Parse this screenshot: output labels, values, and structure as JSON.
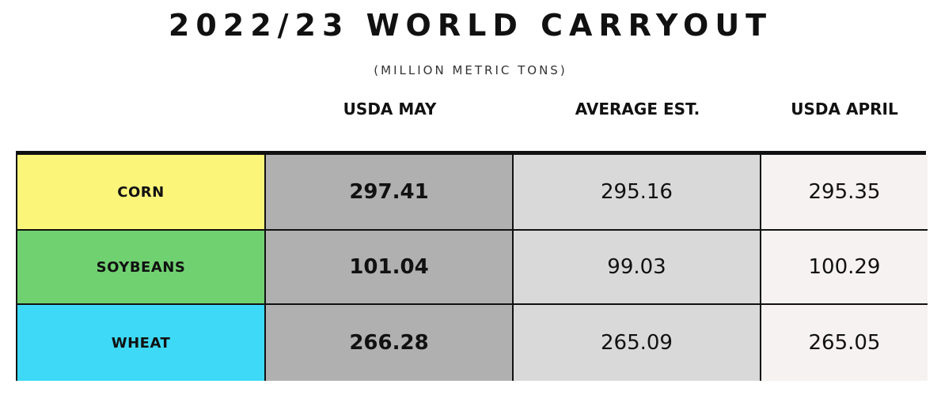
{
  "title": "2022/23 WORLD CARRYOUT",
  "subtitle": "(MILLION METRIC TONS)",
  "columns": [
    "USDA MAY",
    "AVERAGE EST.",
    "USDA APRIL"
  ],
  "rows": [
    {
      "label": "CORN",
      "usda_may": "297.41",
      "average_est": "295.16",
      "usda_april": "295.35"
    },
    {
      "label": "SOYBEANS",
      "usda_may": "101.04",
      "average_est": "99.03",
      "usda_april": "100.29"
    },
    {
      "label": "WHEAT",
      "usda_may": "266.28",
      "average_est": "265.09",
      "usda_april": "265.05"
    }
  ],
  "colors": {
    "corn": "#fbf67a",
    "soybeans": "#70d171",
    "wheat": "#3dd9f7",
    "usda_may_col": "#b0b0b0",
    "average_est_col": "#d9d9d9",
    "usda_april_col": "#f5f2f1"
  },
  "chart_data": {
    "type": "table",
    "title": "2022/23 WORLD CARRYOUT",
    "subtitle": "(MILLION METRIC TONS)",
    "columns": [
      "USDA MAY",
      "AVERAGE EST.",
      "USDA APRIL"
    ],
    "categories": [
      "CORN",
      "SOYBEANS",
      "WHEAT"
    ],
    "series": [
      {
        "name": "USDA MAY",
        "values": [
          297.41,
          101.04,
          266.28
        ]
      },
      {
        "name": "AVERAGE EST.",
        "values": [
          295.16,
          99.03,
          265.09
        ]
      },
      {
        "name": "USDA APRIL",
        "values": [
          295.35,
          100.29,
          265.05
        ]
      }
    ]
  }
}
